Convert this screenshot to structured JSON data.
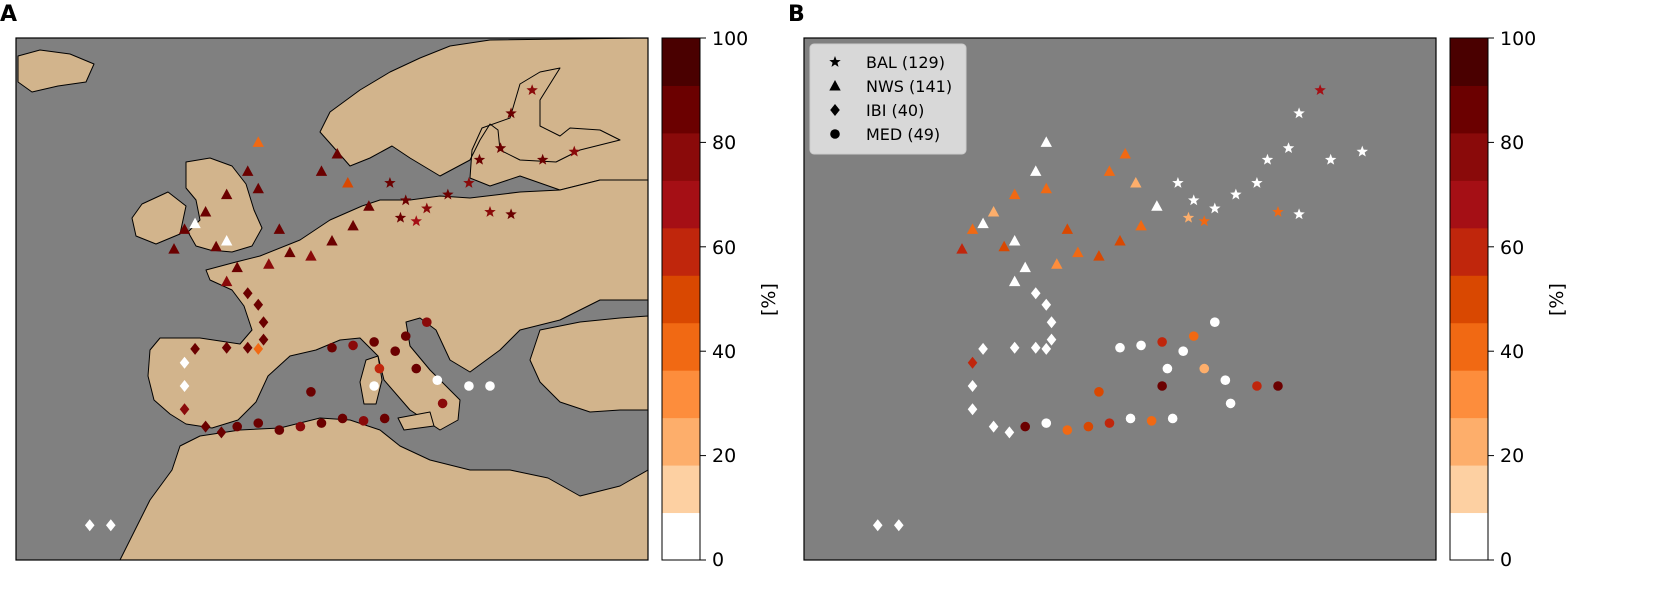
{
  "panels": [
    {
      "letter": "A"
    },
    {
      "letter": "B"
    }
  ],
  "colorbar": {
    "label": "[%]",
    "ticks": [
      "0",
      "20",
      "40",
      "60",
      "80",
      "100"
    ],
    "bins": [
      0,
      10,
      20,
      30,
      40,
      50,
      60,
      70,
      80,
      90,
      100
    ],
    "colors": [
      "#ffffff",
      "#fdd0a2",
      "#fdae6b",
      "#fd8d3c",
      "#f16913",
      "#d94801",
      "#c0260c",
      "#a50f15",
      "#8a0a0a",
      "#6b0000",
      "#4a0000"
    ]
  },
  "map_colors": {
    "sea": "#808080",
    "land": "#d2b48c",
    "coast": "#000000"
  },
  "legend": {
    "entries": [
      {
        "marker": "star",
        "label": "BAL (129)"
      },
      {
        "marker": "triangle",
        "label": "NWS (141)"
      },
      {
        "marker": "diamond",
        "label": "IBI (40)"
      },
      {
        "marker": "circle",
        "label": "MED (49)"
      }
    ]
  },
  "chart_data": [
    {
      "type": "scatter",
      "title": "",
      "xlabel": "",
      "ylabel": "",
      "xlim": [
        -25,
        35
      ],
      "ylim": [
        25,
        70
      ],
      "colorbar_label": "[%]",
      "colorbar_range": [
        0,
        100
      ],
      "series": [
        {
          "name": "BAL (129)",
          "marker": "star",
          "points": [
            [
              10.5,
              57.5,
              95
            ],
            [
              12,
              56,
              90
            ],
            [
              14,
              55.3,
              85
            ],
            [
              16,
              56.5,
              90
            ],
            [
              18,
              57.5,
              80
            ],
            [
              19,
              59.5,
              95
            ],
            [
              21,
              60.5,
              90
            ],
            [
              22,
              63.5,
              95
            ],
            [
              24,
              65.5,
              80
            ],
            [
              20,
              55,
              85
            ],
            [
              22,
              54.8,
              95
            ],
            [
              25,
              59.5,
              90
            ],
            [
              28,
              60.2,
              85
            ],
            [
              11.5,
              54.5,
              95
            ],
            [
              13,
              54.2,
              75
            ]
          ]
        },
        {
          "name": "NWS (141)",
          "marker": "triangle",
          "points": [
            [
              -7,
              55,
              90
            ],
            [
              -5,
              56.5,
              95
            ],
            [
              -3,
              58.5,
              95
            ],
            [
              -2,
              57,
              90
            ],
            [
              0,
              53.5,
              95
            ],
            [
              1,
              51.5,
              90
            ],
            [
              3,
              51.2,
              85
            ],
            [
              5,
              52.5,
              95
            ],
            [
              7,
              53.8,
              90
            ],
            [
              8.5,
              55.5,
              95
            ],
            [
              4,
              58.5,
              95
            ],
            [
              5.5,
              60,
              90
            ],
            [
              -1,
              50.5,
              85
            ],
            [
              -4,
              50.2,
              95
            ],
            [
              -6,
              52,
              90
            ],
            [
              -9,
              53.5,
              95
            ],
            [
              -10,
              51.8,
              90
            ],
            [
              -5,
              49,
              85
            ],
            [
              -2,
              61,
              45
            ],
            [
              -8,
              54,
              5
            ],
            [
              -5,
              52.5,
              5
            ],
            [
              6.5,
              57.5,
              55
            ]
          ]
        },
        {
          "name": "IBI (40)",
          "marker": "diamond",
          "points": [
            [
              -3,
              48,
              95
            ],
            [
              -2,
              47,
              95
            ],
            [
              -1.5,
              45.5,
              90
            ],
            [
              -1.5,
              44,
              90
            ],
            [
              -8,
              43.2,
              95
            ],
            [
              -5,
              43.3,
              90
            ],
            [
              -3,
              43.3,
              95
            ],
            [
              -2,
              43.2,
              45
            ],
            [
              -9,
              42,
              5
            ],
            [
              -9,
              40,
              5
            ],
            [
              -9,
              38,
              85
            ],
            [
              -7,
              36.5,
              90
            ],
            [
              -5.5,
              36,
              95
            ],
            [
              -18,
              28,
              5
            ],
            [
              -16,
              28,
              5
            ]
          ]
        },
        {
          "name": "MED (49)",
          "marker": "circle",
          "points": [
            [
              -4,
              36.5,
              95
            ],
            [
              -2,
              36.8,
              90
            ],
            [
              0,
              36.2,
              95
            ],
            [
              2,
              36.5,
              85
            ],
            [
              4,
              36.8,
              90
            ],
            [
              6,
              37.2,
              95
            ],
            [
              8,
              37,
              80
            ],
            [
              10,
              37.2,
              90
            ],
            [
              3,
              39.5,
              95
            ],
            [
              5,
              43.3,
              90
            ],
            [
              7,
              43.5,
              85
            ],
            [
              9,
              43.8,
              90
            ],
            [
              11,
              43,
              95
            ],
            [
              12,
              44.3,
              90
            ],
            [
              14,
              45.5,
              85
            ],
            [
              13,
              41.5,
              90
            ],
            [
              15,
              40.5,
              5
            ],
            [
              15.5,
              38.5,
              85
            ],
            [
              9,
              40,
              5
            ],
            [
              9.5,
              41.5,
              60
            ],
            [
              18,
              40,
              5
            ],
            [
              20,
              40,
              5
            ]
          ]
        }
      ]
    },
    {
      "type": "scatter",
      "title": "",
      "xlabel": "",
      "ylabel": "",
      "xlim": [
        -25,
        35
      ],
      "ylim": [
        25,
        70
      ],
      "colorbar_label": "[%]",
      "colorbar_range": [
        0,
        100
      ],
      "series": [
        {
          "name": "BAL (129)",
          "marker": "star",
          "points": [
            [
              10.5,
              57.5,
              5
            ],
            [
              12,
              56,
              5
            ],
            [
              14,
              55.3,
              5
            ],
            [
              16,
              56.5,
              5
            ],
            [
              18,
              57.5,
              5
            ],
            [
              19,
              59.5,
              5
            ],
            [
              21,
              60.5,
              5
            ],
            [
              22,
              63.5,
              5
            ],
            [
              24,
              65.5,
              75
            ],
            [
              20,
              55,
              45
            ],
            [
              22,
              54.8,
              5
            ],
            [
              25,
              59.5,
              5
            ],
            [
              28,
              60.2,
              5
            ],
            [
              11.5,
              54.5,
              25
            ],
            [
              13,
              54.2,
              45
            ]
          ]
        },
        {
          "name": "NWS (141)",
          "marker": "triangle",
          "points": [
            [
              -7,
              55,
              25
            ],
            [
              -5,
              56.5,
              45
            ],
            [
              -3,
              58.5,
              5
            ],
            [
              -2,
              57,
              40
            ],
            [
              0,
              53.5,
              55
            ],
            [
              1,
              51.5,
              45
            ],
            [
              3,
              51.2,
              50
            ],
            [
              5,
              52.5,
              55
            ],
            [
              7,
              53.8,
              45
            ],
            [
              8.5,
              55.5,
              5
            ],
            [
              4,
              58.5,
              45
            ],
            [
              5.5,
              60,
              45
            ],
            [
              -1,
              50.5,
              35
            ],
            [
              -4,
              50.2,
              5
            ],
            [
              -6,
              52,
              55
            ],
            [
              -9,
              53.5,
              45
            ],
            [
              -10,
              51.8,
              60
            ],
            [
              -5,
              49,
              5
            ],
            [
              -2,
              61,
              5
            ],
            [
              -8,
              54,
              5
            ],
            [
              -5,
              52.5,
              5
            ],
            [
              6.5,
              57.5,
              20
            ]
          ]
        },
        {
          "name": "IBI (40)",
          "marker": "diamond",
          "points": [
            [
              -3,
              48,
              5
            ],
            [
              -2,
              47,
              5
            ],
            [
              -1.5,
              45.5,
              5
            ],
            [
              -1.5,
              44,
              5
            ],
            [
              -8,
              43.2,
              5
            ],
            [
              -5,
              43.3,
              5
            ],
            [
              -3,
              43.3,
              5
            ],
            [
              -2,
              43.2,
              5
            ],
            [
              -9,
              42,
              65
            ],
            [
              -9,
              40,
              5
            ],
            [
              -9,
              38,
              5
            ],
            [
              -7,
              36.5,
              5
            ],
            [
              -5.5,
              36,
              5
            ],
            [
              -18,
              28,
              5
            ],
            [
              -16,
              28,
              5
            ]
          ]
        },
        {
          "name": "MED (49)",
          "marker": "circle",
          "points": [
            [
              -4,
              36.5,
              90
            ],
            [
              -2,
              36.8,
              5
            ],
            [
              0,
              36.2,
              45
            ],
            [
              2,
              36.5,
              55
            ],
            [
              4,
              36.8,
              60
            ],
            [
              6,
              37.2,
              5
            ],
            [
              8,
              37,
              40
            ],
            [
              10,
              37.2,
              5
            ],
            [
              3,
              39.5,
              55
            ],
            [
              5,
              43.3,
              5
            ],
            [
              7,
              43.5,
              5
            ],
            [
              9,
              43.8,
              65
            ],
            [
              11,
              43,
              5
            ],
            [
              12,
              44.3,
              45
            ],
            [
              14,
              45.5,
              5
            ],
            [
              13,
              41.5,
              25
            ],
            [
              15,
              40.5,
              5
            ],
            [
              15.5,
              38.5,
              5
            ],
            [
              9,
              40,
              90
            ],
            [
              9.5,
              41.5,
              5
            ],
            [
              18,
              40,
              60
            ],
            [
              20,
              40,
              95
            ]
          ]
        }
      ]
    }
  ]
}
